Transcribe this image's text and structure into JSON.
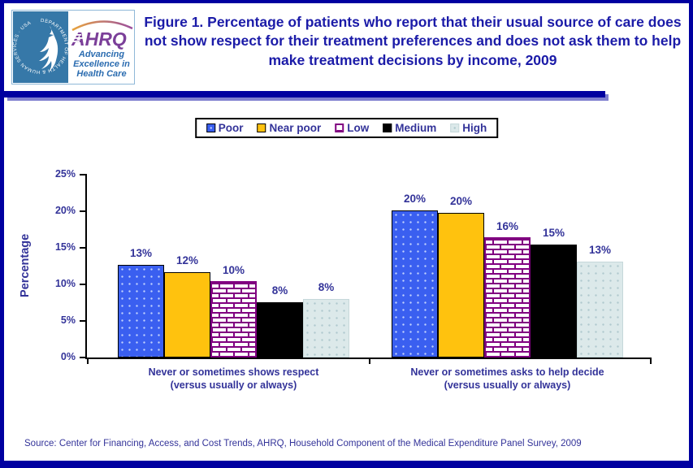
{
  "header": {
    "title": "Figure 1. Percentage of patients who report that their usual source of care does not show respect for their treatment preferences and does not ask them to help make treatment decisions by income, 2009",
    "logo": {
      "seal_text": "DEPARTMENT OF HEALTH & HUMAN SERVICES · USA",
      "brand": "AHRQ",
      "tagline_line1": "Advancing",
      "tagline_line2": "Excellence in",
      "tagline_line3": "Health Care"
    }
  },
  "chart_data": {
    "type": "bar",
    "title": "Percentage of patients who report that their usual source of care does not show respect for their treatment preferences and does not ask them to help make treatment decisions by income, 2009",
    "ylabel": "Percentage",
    "xlabel": "",
    "ylim": [
      0,
      25
    ],
    "y_ticks": [
      "0%",
      "5%",
      "10%",
      "15%",
      "20%",
      "25%"
    ],
    "grid": false,
    "legend_position": "top-center",
    "categories": [
      [
        "Never or sometimes shows respect",
        "(versus usually or always)"
      ],
      [
        "Never or sometimes asks to help decide",
        "(versus usually or always)"
      ]
    ],
    "series": [
      {
        "name": "Poor",
        "swatch": "poor",
        "color": "#3A5FF0",
        "pattern": "dots",
        "values": [
          12.7,
          20.1
        ],
        "labels": [
          "13%",
          "20%"
        ]
      },
      {
        "name": "Near poor",
        "swatch": "nearpoor",
        "color": "#FFC20E",
        "pattern": "solid",
        "values": [
          11.7,
          19.8
        ],
        "labels": [
          "12%",
          "20%"
        ]
      },
      {
        "name": "Low",
        "swatch": "low",
        "color": "#800080",
        "pattern": "brick",
        "values": [
          10.4,
          16.4
        ],
        "labels": [
          "10%",
          "16%"
        ]
      },
      {
        "name": "Medium",
        "swatch": "medium",
        "color": "#000000",
        "pattern": "solid",
        "values": [
          7.6,
          15.4
        ],
        "labels": [
          "8%",
          "15%"
        ]
      },
      {
        "name": "High",
        "swatch": "high",
        "color": "#DCE9EA",
        "pattern": "dots",
        "values": [
          8.0,
          13.1
        ],
        "labels": [
          "8%",
          "13%"
        ]
      }
    ]
  },
  "footer": {
    "source": "Source: Center for Financing, Access, and Cost Trends, AHRQ, Household Component of the Medical Expenditure Panel Survey, 2009"
  },
  "colors": {
    "frame_navy": "#0000A0",
    "title_text": "#1B1BA8",
    "axis_text": "#333399",
    "bar_poor": "#3A5FF0",
    "bar_near_poor": "#FFC20E",
    "bar_low_line": "#800080",
    "bar_medium": "#000000",
    "bar_high": "#DCE9EA",
    "hhs_seal_blue": "#3678A8",
    "ahrq_purple": "#7B3F99",
    "tagline_blue": "#2B6CB0"
  }
}
